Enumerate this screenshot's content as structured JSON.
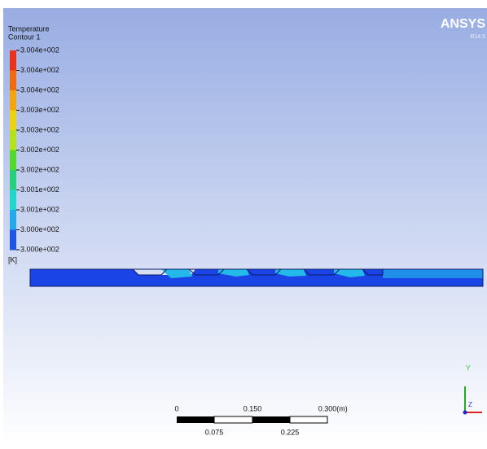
{
  "legend": {
    "title": "Temperature",
    "subtitle": "Contour 1",
    "labels": [
      "3.004e+002",
      "3.004e+002",
      "3.004e+002",
      "3.003e+002",
      "3.003e+002",
      "3.002e+002",
      "3.002e+002",
      "3.001e+002",
      "3.001e+002",
      "3.000e+002",
      "3.000e+002"
    ],
    "unit": "[K]"
  },
  "logo": {
    "name": "ANSYS",
    "version": "R14.5"
  },
  "scale_bar": {
    "top_labels": [
      "0",
      "0.150",
      "0.300"
    ],
    "unit": "(m)",
    "bottom_labels": [
      "0.075",
      "0.225"
    ]
  },
  "triad": {
    "y": "Y",
    "z": "Z"
  }
}
